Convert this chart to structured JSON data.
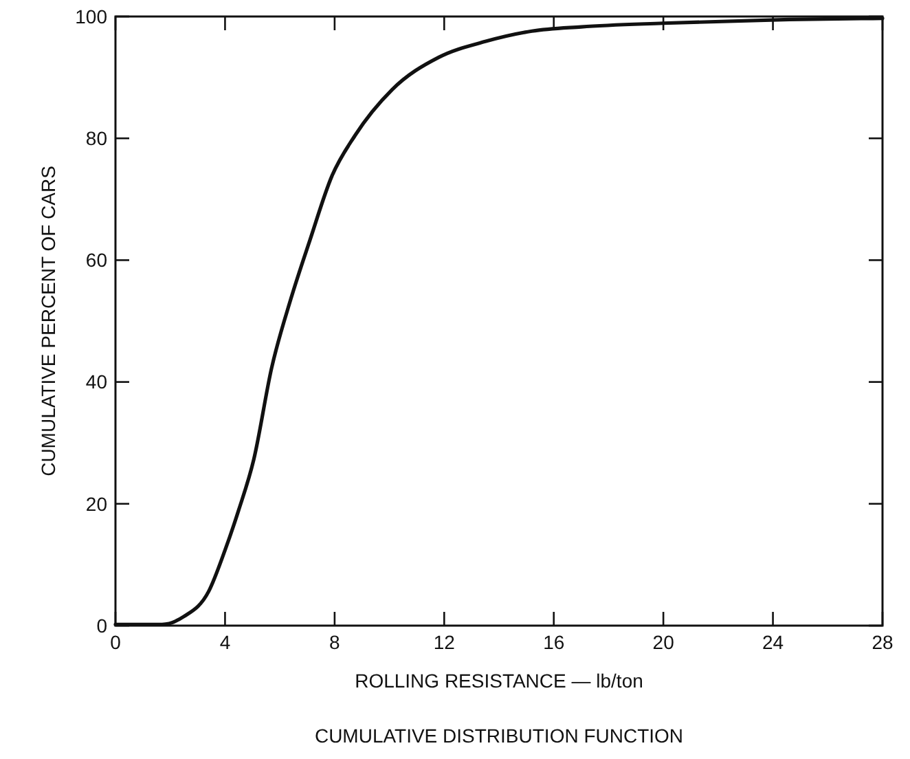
{
  "chart_data": {
    "type": "line",
    "title": "CUMULATIVE DISTRIBUTION FUNCTION",
    "xlabel": "ROLLING RESISTANCE — lb/ton",
    "ylabel": "CUMULATIVE PERCENT OF CARS",
    "xlim": [
      0,
      28
    ],
    "xticks": [
      0,
      4,
      8,
      12,
      16,
      20,
      24,
      28
    ],
    "ylim": [
      0,
      100
    ],
    "yticks": [
      0,
      20,
      40,
      60,
      80,
      100
    ],
    "grid": false,
    "marker": "none",
    "line_style": "solid",
    "series": [
      {
        "color": "#111111",
        "x": [
          0,
          1.7,
          2.5,
          3.4,
          4.0,
          4.5,
          5.05,
          5.7,
          6.4,
          7.1,
          7.9,
          8.75,
          10.1,
          11.8,
          13.5,
          15.2,
          17,
          20,
          24.6,
          28
        ],
        "values": [
          0.2,
          0.2,
          1.5,
          5.6,
          12.4,
          19,
          27.3,
          42.3,
          53.6,
          63.3,
          73.8,
          80.5,
          88,
          93.3,
          95.9,
          97.6,
          98.3,
          98.9,
          99.5,
          99.7
        ]
      }
    ]
  }
}
